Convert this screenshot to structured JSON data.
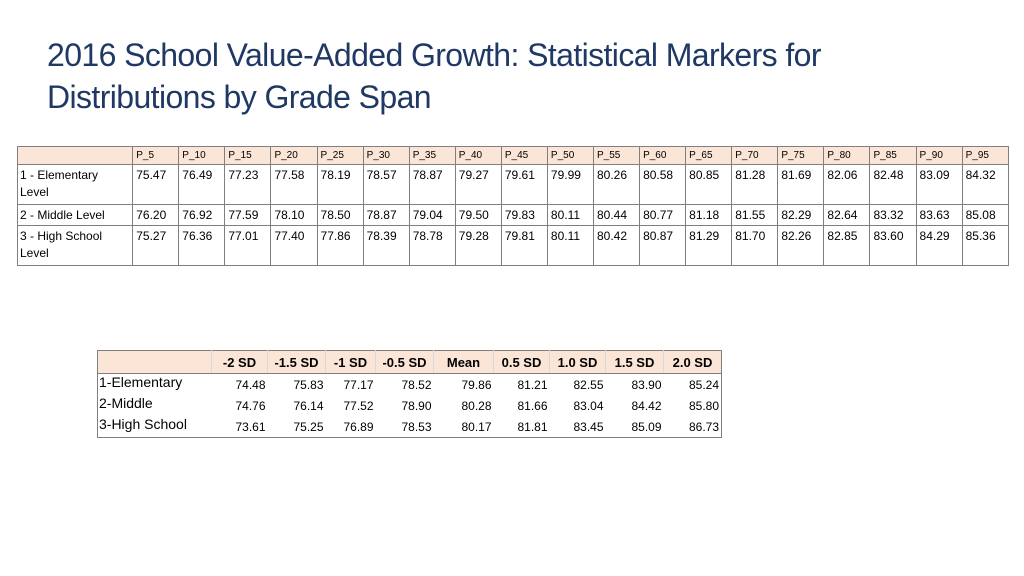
{
  "title": {
    "line1": "2016 School Value-Added Growth: Statistical Markers for",
    "line2": "Distributions by Grade Span"
  },
  "percentile_table": {
    "headers": [
      "P_5",
      "P_10",
      "P_15",
      "P_20",
      "P_25",
      "P_30",
      "P_35",
      "P_40",
      "P_45",
      "P_50",
      "P_55",
      "P_60",
      "P_65",
      "P_70",
      "P_75",
      "P_80",
      "P_85",
      "P_90",
      "P_95"
    ],
    "rows": [
      {
        "label": "1 - Elementary Level",
        "values": [
          "75.47",
          "76.49",
          "77.23",
          "77.58",
          "78.19",
          "78.57",
          "78.87",
          "79.27",
          "79.61",
          "79.99",
          "80.26",
          "80.58",
          "80.85",
          "81.28",
          "81.69",
          "82.06",
          "82.48",
          "83.09",
          "84.32"
        ]
      },
      {
        "label": "2 - Middle Level",
        "values": [
          "76.20",
          "76.92",
          "77.59",
          "78.10",
          "78.50",
          "78.87",
          "79.04",
          "79.50",
          "79.83",
          "80.11",
          "80.44",
          "80.77",
          "81.18",
          "81.55",
          "82.29",
          "82.64",
          "83.32",
          "83.63",
          "85.08"
        ]
      },
      {
        "label": "3 - High School Level",
        "values": [
          "75.27",
          "76.36",
          "77.01",
          "77.40",
          "77.86",
          "78.39",
          "78.78",
          "79.28",
          "79.81",
          "80.11",
          "80.42",
          "80.87",
          "81.29",
          "81.70",
          "82.26",
          "82.85",
          "83.60",
          "84.29",
          "85.36"
        ]
      }
    ]
  },
  "sd_table": {
    "headers": [
      "-2 SD",
      "-1.5 SD",
      "-1 SD",
      "-0.5 SD",
      "Mean",
      "0.5 SD",
      "1.0 SD",
      "1.5 SD",
      "2.0 SD"
    ],
    "rows": [
      {
        "label": "1-Elementary",
        "values": [
          "74.48",
          "75.83",
          "77.17",
          "78.52",
          "79.86",
          "81.21",
          "82.55",
          "83.90",
          "85.24"
        ]
      },
      {
        "label": "2-Middle",
        "values": [
          "74.76",
          "76.14",
          "77.52",
          "78.90",
          "80.28",
          "81.66",
          "83.04",
          "84.42",
          "85.80"
        ]
      },
      {
        "label": "3-High School",
        "values": [
          "73.61",
          "75.25",
          "76.89",
          "78.53",
          "80.17",
          "81.81",
          "83.45",
          "85.09",
          "86.73"
        ]
      }
    ]
  }
}
